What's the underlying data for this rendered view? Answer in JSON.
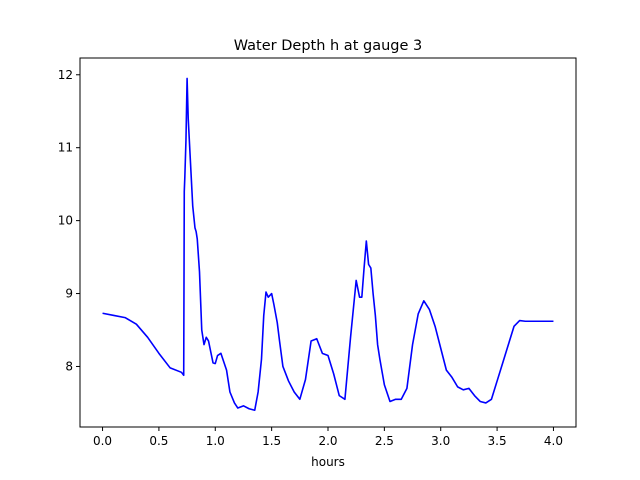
{
  "chart_data": {
    "type": "line",
    "title": "Water Depth h at gauge 3",
    "xlabel": "hours",
    "ylabel": "",
    "xlim": [
      -0.2,
      4.2
    ],
    "ylim": [
      7.17,
      12.23
    ],
    "xticks": [
      0.0,
      0.5,
      1.0,
      1.5,
      2.0,
      2.5,
      3.0,
      3.5,
      4.0
    ],
    "xtick_labels": [
      "0.0",
      "0.5",
      "1.0",
      "1.5",
      "2.0",
      "2.5",
      "3.0",
      "3.5",
      "4.0"
    ],
    "yticks": [
      8,
      9,
      10,
      11,
      12
    ],
    "ytick_labels": [
      "8",
      "9",
      "10",
      "11",
      "12"
    ],
    "grid": false,
    "series": [
      {
        "color": "#0000ff",
        "x": [
          0.0,
          0.1,
          0.2,
          0.3,
          0.4,
          0.5,
          0.6,
          0.7,
          0.72,
          0.725,
          0.73,
          0.74,
          0.75,
          0.76,
          0.78,
          0.8,
          0.82,
          0.83,
          0.84,
          0.86,
          0.88,
          0.9,
          0.92,
          0.94,
          0.96,
          0.98,
          1.0,
          1.02,
          1.05,
          1.1,
          1.13,
          1.17,
          1.2,
          1.25,
          1.3,
          1.35,
          1.38,
          1.41,
          1.43,
          1.45,
          1.47,
          1.5,
          1.52,
          1.55,
          1.57,
          1.6,
          1.65,
          1.7,
          1.75,
          1.8,
          1.85,
          1.9,
          1.95,
          2.0,
          2.05,
          2.1,
          2.15,
          2.2,
          2.25,
          2.28,
          2.3,
          2.32,
          2.34,
          2.36,
          2.38,
          2.4,
          2.42,
          2.44,
          2.46,
          2.5,
          2.55,
          2.6,
          2.65,
          2.7,
          2.75,
          2.8,
          2.85,
          2.9,
          2.95,
          3.0,
          3.05,
          3.1,
          3.15,
          3.2,
          3.25,
          3.3,
          3.35,
          3.4,
          3.45,
          3.5,
          3.55,
          3.6,
          3.65,
          3.7,
          3.75,
          3.8,
          3.85,
          3.9,
          3.95,
          3.98,
          4.0
        ],
        "y": [
          8.73,
          8.7,
          8.67,
          8.58,
          8.4,
          8.18,
          7.98,
          7.92,
          7.88,
          10.4,
          10.6,
          11.1,
          11.95,
          11.4,
          10.8,
          10.2,
          9.9,
          9.85,
          9.75,
          9.3,
          8.5,
          8.3,
          8.4,
          8.35,
          8.2,
          8.05,
          8.04,
          8.15,
          8.18,
          7.95,
          7.65,
          7.5,
          7.43,
          7.46,
          7.42,
          7.4,
          7.65,
          8.1,
          8.7,
          9.02,
          8.95,
          9.0,
          8.85,
          8.6,
          8.35,
          8.0,
          7.8,
          7.65,
          7.55,
          7.82,
          8.35,
          8.38,
          8.18,
          8.15,
          7.9,
          7.6,
          7.55,
          8.4,
          9.18,
          8.95,
          8.95,
          9.35,
          9.72,
          9.4,
          9.35,
          9.0,
          8.7,
          8.3,
          8.1,
          7.75,
          7.52,
          7.55,
          7.55,
          7.7,
          8.3,
          8.72,
          8.9,
          8.78,
          8.55,
          8.25,
          7.95,
          7.85,
          7.72,
          7.68,
          7.7,
          7.6,
          7.52,
          7.5,
          7.55,
          7.8,
          8.05,
          8.3,
          8.55,
          8.63,
          8.62,
          8.62,
          8.62,
          8.62,
          8.62,
          8.62,
          8.62
        ]
      }
    ]
  }
}
